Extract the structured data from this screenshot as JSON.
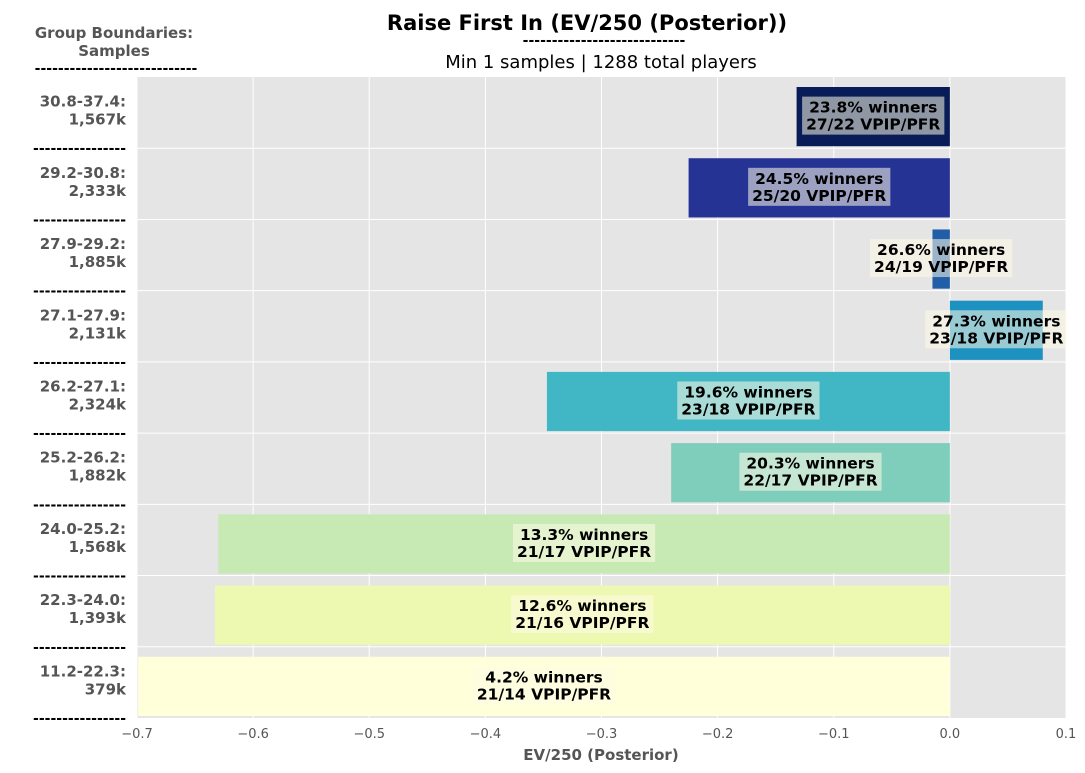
{
  "chart_data": {
    "type": "bar",
    "orientation": "horizontal",
    "title": "Raise First In (EV/250 (Posterior))",
    "title_underline": "----------------------------",
    "subtitle": "Min 1 samples | 1288 total players",
    "left_header": [
      "Group Boundaries:",
      "Samples"
    ],
    "left_header_underline": "----------------------------",
    "separator": "----------------",
    "xlabel": "EV/250 (Posterior)",
    "xlim": [
      -0.7,
      0.1
    ],
    "xticks": [
      "−0.7",
      "−0.6",
      "−0.5",
      "−0.4",
      "−0.3",
      "−0.2",
      "−0.1",
      "0.0",
      "0.1"
    ],
    "grid": true,
    "background": "#e5e5e5",
    "groups": [
      {
        "range": "30.8-37.4:",
        "samples": "1,567k",
        "value": -0.132,
        "winners": "23.8% winners",
        "vpip_pfr": "27/22 VPIP/PFR",
        "color": "#081d58"
      },
      {
        "range": "29.2-30.8:",
        "samples": "2,333k",
        "value": -0.225,
        "winners": "24.5% winners",
        "vpip_pfr": "25/20 VPIP/PFR",
        "color": "#253494"
      },
      {
        "range": "27.9-29.2:",
        "samples": "1,885k",
        "value": -0.015,
        "winners": "26.6% winners",
        "vpip_pfr": "24/19 VPIP/PFR",
        "color": "#225ea8"
      },
      {
        "range": "27.1-27.9:",
        "samples": "2,131k",
        "value": 0.08,
        "winners": "27.3% winners",
        "vpip_pfr": "23/18 VPIP/PFR",
        "color": "#1d91c0"
      },
      {
        "range": "26.2-27.1:",
        "samples": "2,324k",
        "value": -0.347,
        "winners": "19.6% winners",
        "vpip_pfr": "23/18 VPIP/PFR",
        "color": "#41b6c4"
      },
      {
        "range": "25.2-26.2:",
        "samples": "1,882k",
        "value": -0.24,
        "winners": "20.3% winners",
        "vpip_pfr": "22/17 VPIP/PFR",
        "color": "#7fcdbb"
      },
      {
        "range": "24.0-25.2:",
        "samples": "1,568k",
        "value": -0.63,
        "winners": "13.3% winners",
        "vpip_pfr": "21/17 VPIP/PFR",
        "color": "#c7e9b4"
      },
      {
        "range": "22.3-24.0:",
        "samples": "1,393k",
        "value": -0.633,
        "winners": "12.6% winners",
        "vpip_pfr": "21/16 VPIP/PFR",
        "color": "#edf8b1"
      },
      {
        "range": "11.2-22.3:",
        "samples": "379k",
        "value": -0.699,
        "winners": "4.2% winners",
        "vpip_pfr": "21/14 VPIP/PFR",
        "color": "#ffffd9"
      }
    ]
  }
}
